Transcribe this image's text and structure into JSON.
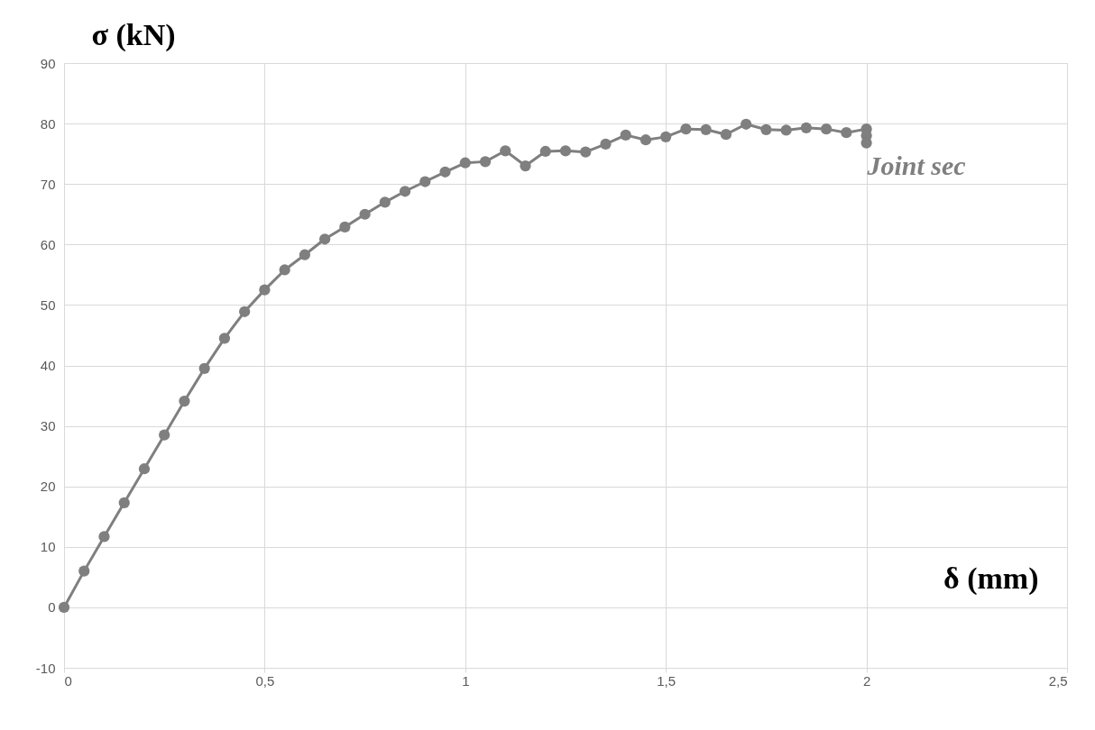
{
  "chart_data": {
    "type": "line",
    "xlabel": "δ (mm)",
    "ylabel": "σ (kN)",
    "x": [
      0,
      0.05,
      0.1,
      0.15,
      0.2,
      0.25,
      0.3,
      0.35,
      0.4,
      0.45,
      0.5,
      0.55,
      0.6,
      0.65,
      0.7,
      0.75,
      0.8,
      0.85,
      0.9,
      0.95,
      1,
      1.05,
      1.1,
      1.15,
      1.2,
      1.25,
      1.3,
      1.35,
      1.4,
      1.45,
      1.5,
      1.55,
      1.6,
      1.65,
      1.7,
      1.75,
      1.8,
      1.85,
      1.9,
      1.95,
      2,
      2,
      2
    ],
    "series": [
      {
        "color": "#7f7f7f",
        "values": [
          0,
          6,
          11.7,
          17.3,
          22.9,
          28.5,
          34.1,
          39.5,
          44.5,
          48.9,
          52.5,
          55.8,
          58.3,
          60.9,
          62.9,
          65,
          67,
          68.8,
          70.4,
          72,
          73.5,
          73.7,
          75.5,
          73,
          75.4,
          75.5,
          75.3,
          76.6,
          78.1,
          77.3,
          77.8,
          79.1,
          79,
          78.2,
          79.9,
          79,
          78.9,
          79.3,
          79.1,
          78.5,
          79.1,
          78,
          76.8
        ]
      }
    ],
    "xlim": [
      0,
      2.5
    ],
    "xticks": [
      0,
      {
        "value": 0.5,
        "label": "0,5"
      },
      1,
      {
        "value": 1.5,
        "label": "1,5"
      },
      2,
      {
        "value": 2.5,
        "label": "2,5"
      }
    ],
    "ylim": [
      -10,
      90
    ],
    "yticks": [
      -10,
      0,
      10,
      20,
      30,
      40,
      50,
      60,
      70,
      80,
      90
    ],
    "annotations": [
      "Joint sec"
    ],
    "grid": true,
    "marker": "circle",
    "line_style": "solid"
  }
}
